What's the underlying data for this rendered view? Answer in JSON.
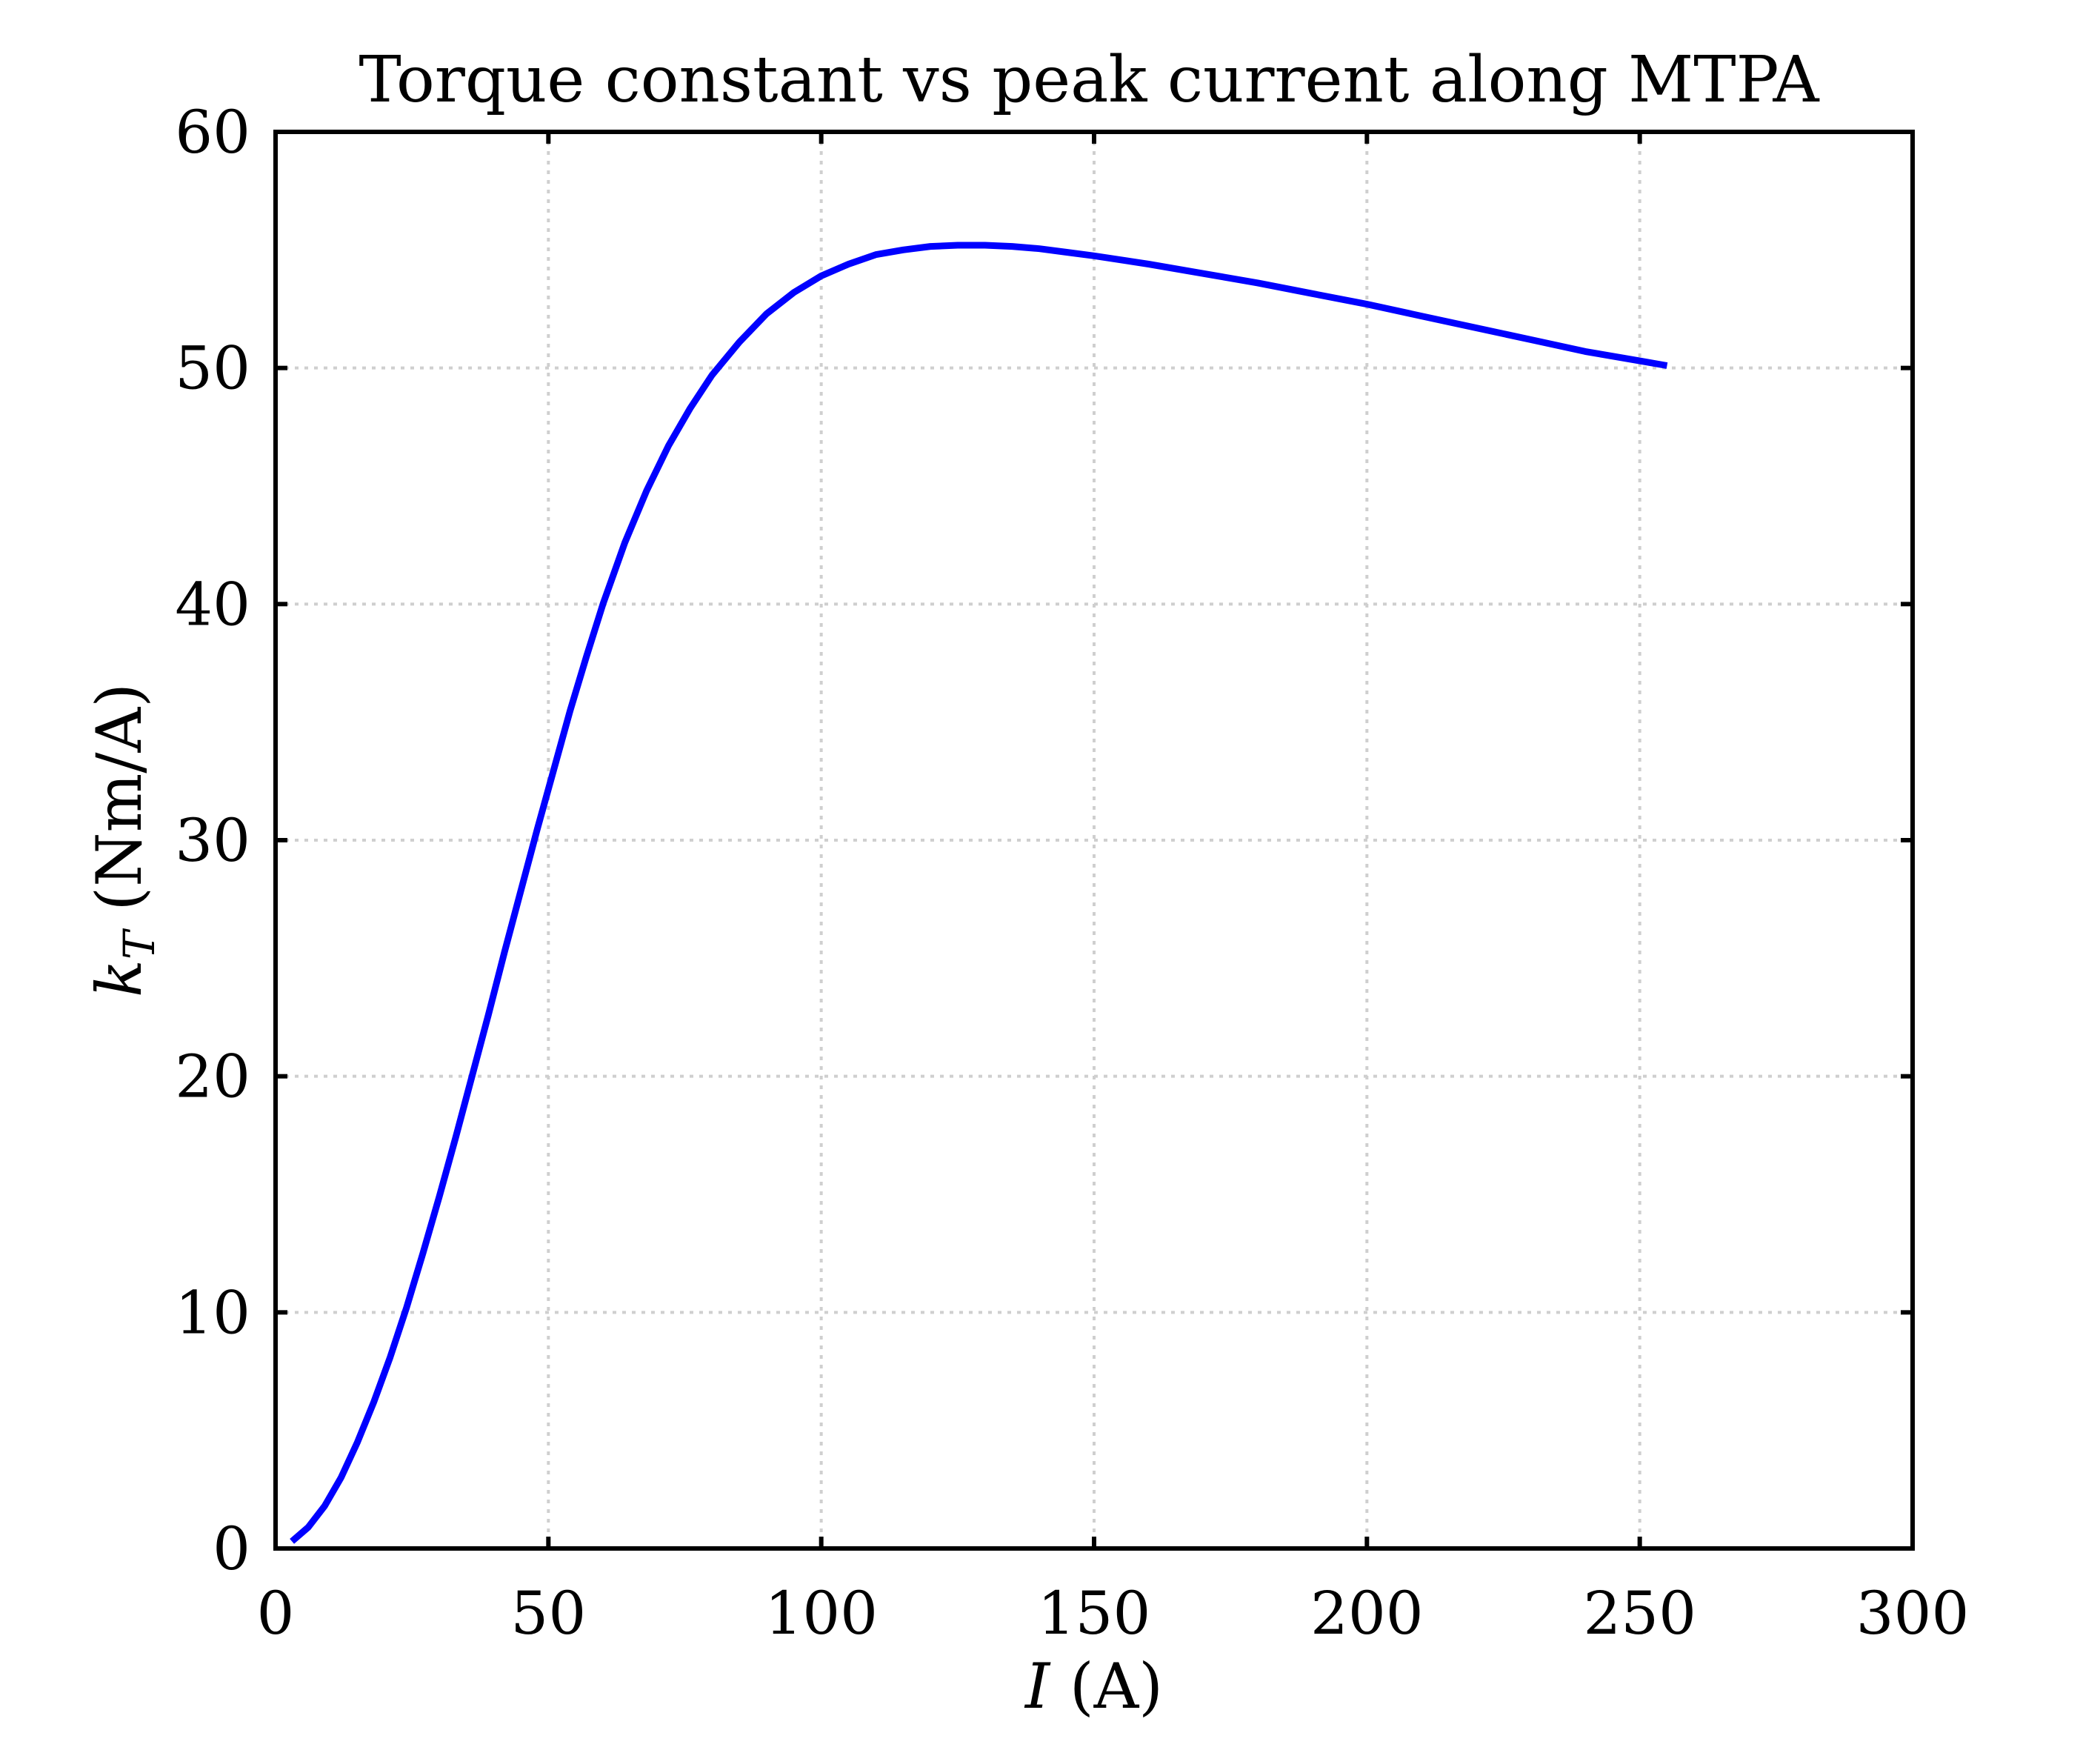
{
  "chart_data": {
    "type": "line",
    "title": "Torque constant vs peak current along MTPA",
    "xlabel": "I (A)",
    "ylabel": "kT (Nm/A)",
    "xlim": [
      0,
      300
    ],
    "ylim": [
      0,
      60
    ],
    "xticks": [
      "0",
      "50",
      "100",
      "150",
      "200",
      "250",
      "300"
    ],
    "yticks": [
      "0",
      "10",
      "20",
      "30",
      "40",
      "50",
      "60"
    ],
    "grid": true,
    "legend": "none",
    "series": [
      {
        "color": "#0000ff",
        "x": [
          3,
          6,
          9,
          12,
          15,
          18,
          21,
          24,
          27,
          30,
          33,
          36,
          39,
          42,
          45,
          48,
          51,
          54,
          57,
          60,
          64,
          68,
          72,
          76,
          80,
          85,
          90,
          95,
          100,
          105,
          110,
          115,
          120,
          125,
          130,
          135,
          140,
          145,
          150,
          160,
          170,
          180,
          190,
          200,
          210,
          220,
          230,
          240,
          250,
          255
        ],
        "y": [
          0.3,
          0.9,
          1.8,
          3.0,
          4.5,
          6.2,
          8.1,
          10.2,
          12.5,
          14.9,
          17.4,
          20.0,
          22.6,
          25.3,
          27.9,
          30.5,
          33.0,
          35.5,
          37.8,
          40.0,
          42.6,
          44.8,
          46.7,
          48.3,
          49.7,
          51.1,
          52.3,
          53.2,
          53.9,
          54.4,
          54.8,
          55.0,
          55.15,
          55.2,
          55.2,
          55.15,
          55.05,
          54.9,
          54.75,
          54.4,
          54.0,
          53.6,
          53.15,
          52.7,
          52.2,
          51.7,
          51.2,
          50.7,
          50.3,
          50.1
        ]
      }
    ]
  }
}
